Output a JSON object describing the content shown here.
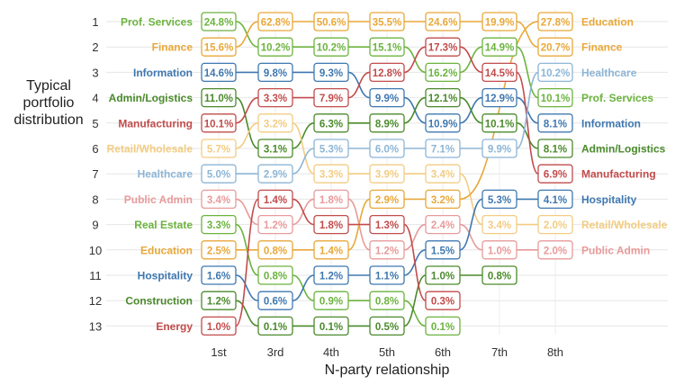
{
  "chart_data": {
    "type": "bump",
    "title": "",
    "ylabel": "Typical portfolio distribution",
    "xlabel": "N-party relationship",
    "columns": [
      "1st",
      "3rd",
      "4th",
      "5th",
      "6th",
      "7th",
      "8th"
    ],
    "ranks": [
      1,
      2,
      3,
      4,
      5,
      6,
      7,
      8,
      9,
      10,
      11,
      12,
      13
    ],
    "colors": {
      "Prof. Services": "#6cb33f",
      "Finance": "#e8a83a",
      "Information": "#3f78b0",
      "Admin/Logistics": "#4b8a2c",
      "Manufacturing": "#c24b4b",
      "Retail/Wholesale": "#f2cc82",
      "Healthcare": "#8db5d6",
      "Public Admin": "#e89a9a",
      "Real Estate": "#6cb33f",
      "Education": "#e8a83a",
      "Hospitality": "#3f78b0",
      "Construction": "#4b8a2c",
      "Energy": "#c24b4b"
    },
    "series": [
      {
        "name": "Prof. Services",
        "ranks": [
          1,
          2,
          2,
          2,
          3,
          2,
          4
        ],
        "values": [
          "24.8%",
          "10.2%",
          "10.2%",
          "15.1%",
          "16.2%",
          "14.9%",
          "10.1%"
        ]
      },
      {
        "name": "Finance",
        "ranks": [
          2,
          1,
          1,
          1,
          1,
          1,
          2
        ],
        "values": [
          "15.6%",
          "62.8%",
          "50.6%",
          "35.5%",
          "24.6%",
          "19.9%",
          "20.7%"
        ]
      },
      {
        "name": "Information",
        "ranks": [
          3,
          3,
          3,
          4,
          5,
          4,
          5
        ],
        "values": [
          "14.6%",
          "9.8%",
          "9.3%",
          "9.9%",
          "10.9%",
          "12.9%",
          "8.1%"
        ]
      },
      {
        "name": "Admin/Logistics",
        "ranks": [
          4,
          6,
          5,
          5,
          4,
          5,
          6
        ],
        "values": [
          "11.0%",
          "3.1%",
          "6.3%",
          "8.9%",
          "12.1%",
          "10.1%",
          "8.1%"
        ]
      },
      {
        "name": "Manufacturing",
        "ranks": [
          5,
          4,
          4,
          3,
          2,
          3,
          7
        ],
        "values": [
          "10.1%",
          "3.3%",
          "7.9%",
          "12.8%",
          "17.3%",
          "14.5%",
          "6.9%"
        ]
      },
      {
        "name": "Retail/Wholesale",
        "ranks": [
          6,
          5,
          7,
          7,
          7,
          9,
          9
        ],
        "values": [
          "5.7%",
          "3.2%",
          "3.3%",
          "3.9%",
          "3.4%",
          "3.4%",
          "2.0%"
        ]
      },
      {
        "name": "Healthcare",
        "ranks": [
          7,
          7,
          6,
          6,
          6,
          6,
          3
        ],
        "values": [
          "5.0%",
          "2.9%",
          "5.3%",
          "6.0%",
          "7.1%",
          "9.9%",
          "10.2%"
        ]
      },
      {
        "name": "Public Admin",
        "ranks": [
          8,
          9,
          8,
          10,
          9,
          10,
          10
        ],
        "values": [
          "3.4%",
          "1.2%",
          "1.8%",
          "1.2%",
          "2.4%",
          "1.0%",
          "2.0%"
        ]
      },
      {
        "name": "Real Estate",
        "ranks": [
          9,
          11,
          12,
          12,
          13
        ],
        "values": [
          "3.3%",
          "0.8%",
          "0.9%",
          "0.8%",
          "0.1%"
        ]
      },
      {
        "name": "Education",
        "ranks": [
          10,
          10,
          10,
          8,
          8,
          1
        ],
        "values": [
          "2.5%",
          "0.8%",
          "1.4%",
          "2.9%",
          "3.2%",
          "27.8%"
        ],
        "end_label": "Education"
      },
      {
        "name": "Hospitality",
        "ranks": [
          11,
          12,
          11,
          11,
          10,
          8,
          8
        ],
        "values": [
          "1.6%",
          "0.6%",
          "1.2%",
          "1.1%",
          "1.5%",
          "5.3%",
          "4.1%"
        ]
      },
      {
        "name": "Construction",
        "ranks": [
          12,
          13,
          13,
          13,
          11,
          11
        ],
        "values": [
          "1.2%",
          "0.1%",
          "0.1%",
          "0.5%",
          "1.0%",
          "0.8%"
        ]
      },
      {
        "name": "Energy",
        "ranks": [
          13,
          8,
          9,
          9,
          12
        ],
        "values": [
          "1.0%",
          "1.4%",
          "1.8%",
          "1.3%",
          "0.3%"
        ]
      }
    ],
    "xs_special": {
      "Education": [
        0,
        1,
        2,
        3,
        4,
        6
      ]
    },
    "end_labels": [
      {
        "rank": 1,
        "label": "Education"
      },
      {
        "rank": 2,
        "label": "Finance"
      },
      {
        "rank": 3,
        "label": "Healthcare"
      },
      {
        "rank": 4,
        "label": "Prof. Services"
      },
      {
        "rank": 5,
        "label": "Information"
      },
      {
        "rank": 6,
        "label": "Admin/Logistics"
      },
      {
        "rank": 7,
        "label": "Manufacturing"
      },
      {
        "rank": 8,
        "label": "Hospitality"
      },
      {
        "rank": 9,
        "label": "Retail/Wholesale"
      },
      {
        "rank": 10,
        "label": "Public Admin"
      }
    ]
  }
}
